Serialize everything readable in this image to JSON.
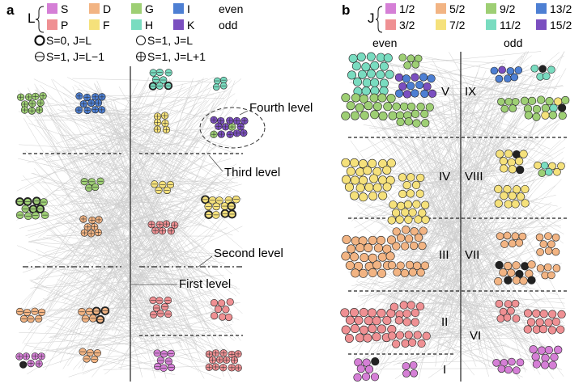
{
  "panel_a": {
    "letter": "a",
    "legend": {
      "group_letter": "L",
      "items": [
        {
          "label": "S",
          "color": "#d57fd6"
        },
        {
          "label": "D",
          "color": "#f2b483"
        },
        {
          "label": "G",
          "color": "#9ecf74"
        },
        {
          "label": "I",
          "color": "#4d7fd3"
        },
        {
          "label": "P",
          "color": "#ef9093"
        },
        {
          "label": "F",
          "color": "#f5e17b"
        },
        {
          "label": "H",
          "color": "#79dcc0"
        },
        {
          "label": "K",
          "color": "#7b4fc0"
        }
      ],
      "parity_even": "even",
      "parity_odd": "odd",
      "symbols": [
        {
          "symbol": "bold-circle",
          "label": "S=0, J=L"
        },
        {
          "symbol": "plain-circle",
          "label": "S=1, J=L"
        },
        {
          "symbol": "minus-circle",
          "label": "S=1, J=L−1"
        },
        {
          "symbol": "plus-circle",
          "label": "S=1, J=L+1"
        }
      ]
    },
    "level_labels": [
      "Fourth level",
      "Third level",
      "Second level",
      "First level"
    ]
  },
  "panel_b": {
    "letter": "b",
    "legend": {
      "group_letter": "J",
      "items": [
        {
          "label": "1/2",
          "color": "#d57fd6"
        },
        {
          "label": "5/2",
          "color": "#f2b483"
        },
        {
          "label": "9/2",
          "color": "#9ecf74"
        },
        {
          "label": "13/2",
          "color": "#4d7fd3"
        },
        {
          "label": "3/2",
          "color": "#ef9093"
        },
        {
          "label": "7/2",
          "color": "#f5e17b"
        },
        {
          "label": "11/2",
          "color": "#79dcc0"
        },
        {
          "label": "15/2",
          "color": "#7b4fc0"
        }
      ]
    },
    "col_even": "even",
    "col_odd": "odd",
    "romans": [
      "V",
      "IX",
      "IV",
      "VIII",
      "III",
      "VII",
      "II",
      "VI",
      "I"
    ]
  }
}
